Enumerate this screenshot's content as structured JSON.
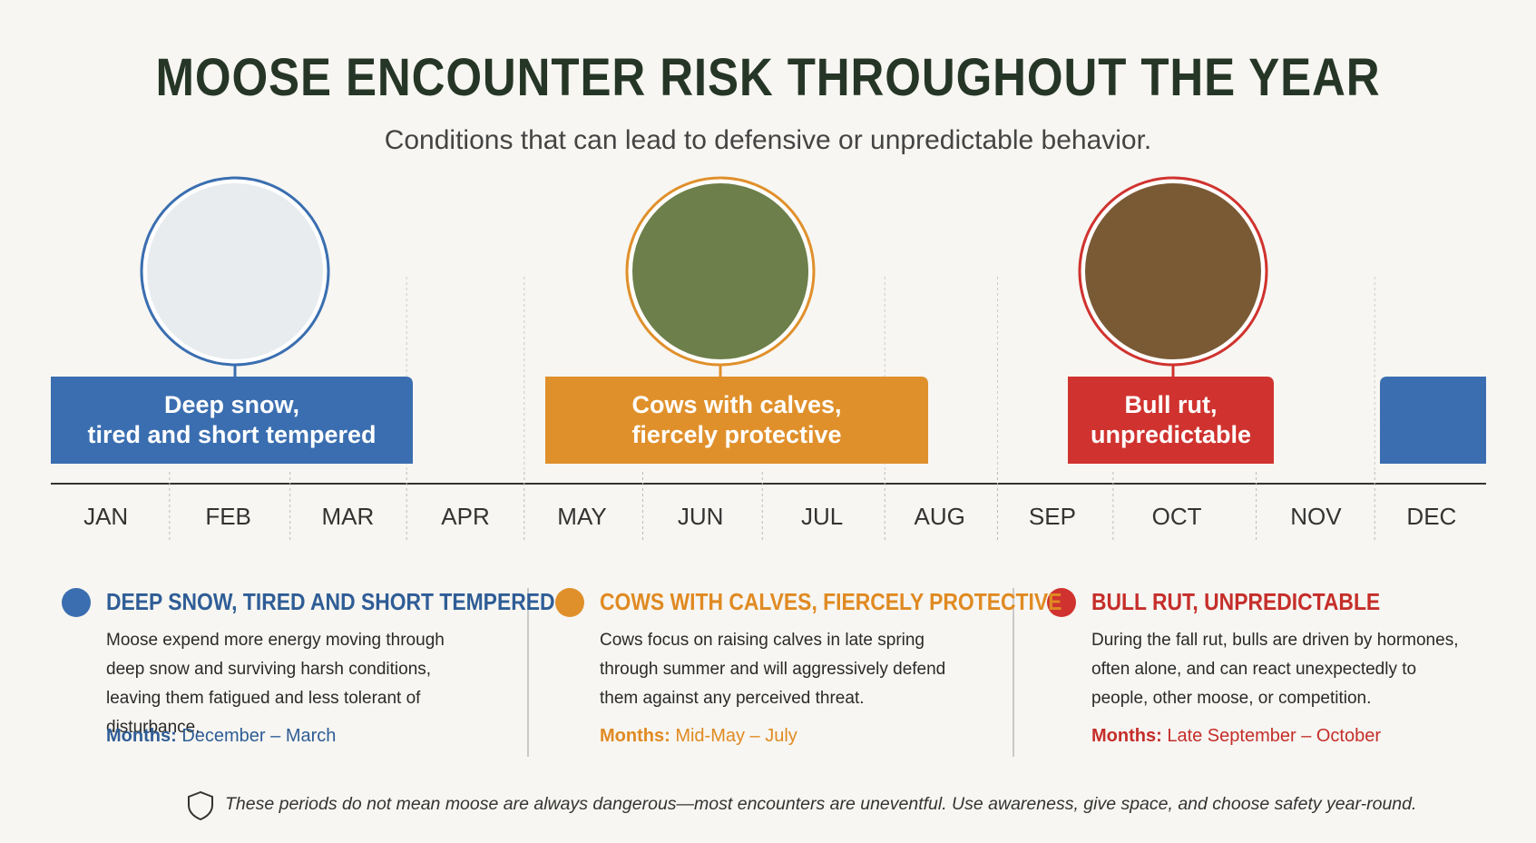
{
  "header": {
    "title": "MOOSE ENCOUNTER RISK THROUGHOUT THE YEAR",
    "subtitle": "Conditions that can lead to defensive or unpredictable behavior."
  },
  "timeline": {
    "months": [
      "JAN",
      "FEB",
      "MAR",
      "APR",
      "MAY",
      "JUN",
      "JUL",
      "AUG",
      "SEP",
      "OCT",
      "NOV",
      "DEC"
    ],
    "periods": [
      {
        "lines": [
          "Deep snow,",
          "tired and short tempered"
        ]
      },
      {
        "lines": [
          "Cows with calves,",
          "fiercely protective"
        ]
      },
      {
        "lines": [
          "Bull rut,",
          "unpredictable"
        ]
      }
    ]
  },
  "details": [
    {
      "heading": "DEEP SNOW, TIRED AND SHORT TEMPERED",
      "body": "Moose expend more energy moving through deep snow and surviving harsh conditions, leaving them fatigued and less tolerant of disturbance.",
      "months_label": "Months:",
      "months_value": "December – March"
    },
    {
      "heading": "COWS WITH CALVES, FIERCELY PROTECTIVE",
      "body": "Cows focus on raising calves in late spring through summer and will aggressively defend them against any perceived threat.",
      "months_label": "Months:",
      "months_value": "Mid-May – July"
    },
    {
      "heading": "BULL RUT, UNPREDICTABLE",
      "body": "During the fall rut, bulls are driven by hormones, often alone, and can react unexpectedly to people, other moose, or competition.",
      "months_label": "Months:",
      "months_value": "Late September – October"
    }
  ],
  "footer": {
    "note": "These periods do not mean moose are always dangerous—most encounters are uneventful. Use awareness, give space, and choose safety year-round."
  }
}
